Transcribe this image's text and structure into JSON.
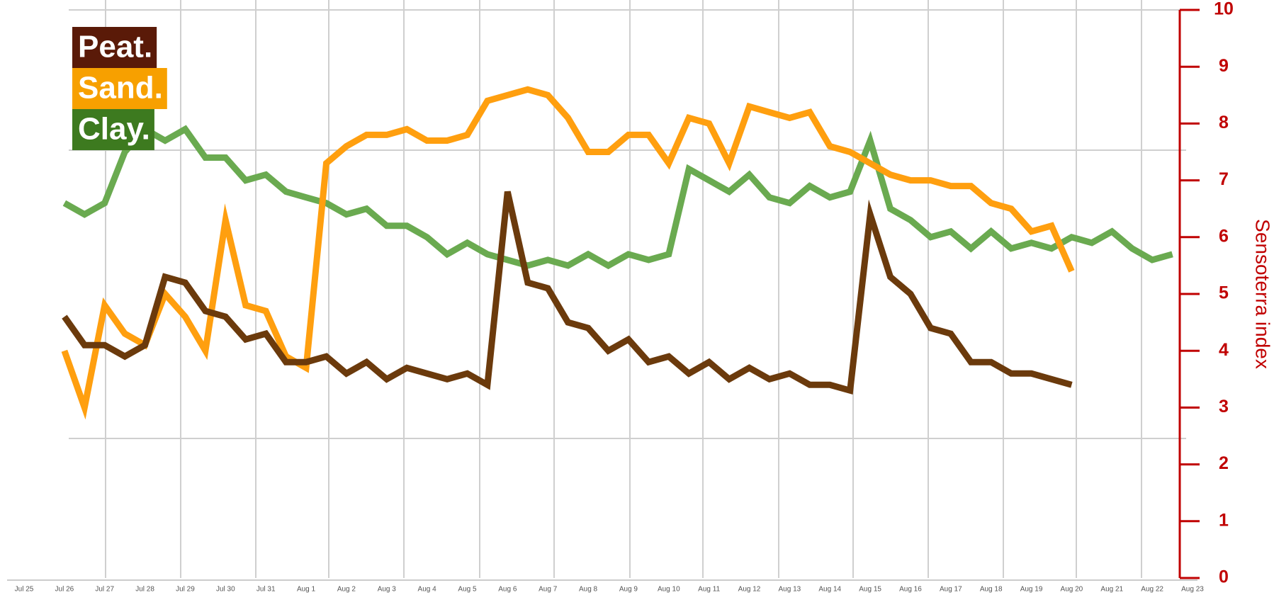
{
  "chart_data": {
    "type": "line",
    "y_axis_label": "Sensoterra index",
    "y_axis_side": "right",
    "axis_color": "#c00000",
    "legend": "top-left",
    "grid": true,
    "ylim": [
      0,
      10
    ],
    "yticks": [
      0,
      1,
      2,
      3,
      4,
      5,
      6,
      7,
      8,
      9,
      10
    ],
    "categories": [
      "Jul 25",
      null,
      "Jul 26",
      null,
      "Jul 27",
      null,
      "Jul 28",
      null,
      "Jul 29",
      null,
      "Jul 30",
      null,
      "Jul 31",
      null,
      "Aug 1",
      null,
      "Aug 2",
      null,
      "Aug 3",
      null,
      "Aug 4",
      null,
      "Aug 5",
      null,
      "Aug 6",
      null,
      "Aug 7",
      null,
      "Aug 8",
      null,
      "Aug 9",
      null,
      "Aug 10",
      null,
      "Aug 11",
      null,
      "Aug 12",
      null,
      "Aug 13",
      null,
      "Aug 14",
      null,
      "Aug 15",
      null,
      "Aug 16",
      null,
      "Aug 17",
      null,
      "Aug 18",
      null,
      "Aug 19",
      null,
      "Aug 20",
      null,
      "Aug 21",
      null,
      "Aug 22",
      null,
      "Aug 23"
    ],
    "series": [
      {
        "name": "Peat.",
        "color": "#6b3a0c",
        "legend_color": "#5a1a08",
        "values": [
          null,
          null,
          4.6,
          4.1,
          4.1,
          3.9,
          4.1,
          5.3,
          5.2,
          4.7,
          4.6,
          4.2,
          4.3,
          3.8,
          3.8,
          3.9,
          3.6,
          3.8,
          3.5,
          3.7,
          3.6,
          3.5,
          3.6,
          3.4,
          6.8,
          5.2,
          5.1,
          4.5,
          4.4,
          4.0,
          4.2,
          3.8,
          3.9,
          3.6,
          3.8,
          3.5,
          3.7,
          3.5,
          3.6,
          3.4,
          3.4,
          3.3,
          6.4,
          5.3,
          5.0,
          4.4,
          4.3,
          3.8,
          3.8,
          3.6,
          3.6,
          3.5,
          3.4,
          null,
          null,
          null,
          null,
          null,
          null
        ]
      },
      {
        "name": "Sand.",
        "color": "#ff9f0f",
        "legend_color": "#f7a000",
        "values": [
          null,
          null,
          4.0,
          3.0,
          4.8,
          4.3,
          4.1,
          5.0,
          4.6,
          4.0,
          6.3,
          4.8,
          4.7,
          3.9,
          3.7,
          7.3,
          7.6,
          7.8,
          7.8,
          7.9,
          7.7,
          7.7,
          7.8,
          8.4,
          8.5,
          8.6,
          8.5,
          8.1,
          7.5,
          7.5,
          7.8,
          7.8,
          7.3,
          8.1,
          8.0,
          7.3,
          8.3,
          8.2,
          8.1,
          8.2,
          7.6,
          7.5,
          7.3,
          7.1,
          7.0,
          7.0,
          6.9,
          6.9,
          6.6,
          6.5,
          6.1,
          6.2,
          5.4,
          null,
          null,
          null,
          null,
          null,
          null
        ]
      },
      {
        "name": "Clay.",
        "color": "#6aaa50",
        "legend_color": "#3d7a1f",
        "values": [
          null,
          null,
          6.6,
          6.4,
          6.6,
          7.5,
          7.9,
          7.7,
          7.9,
          7.4,
          7.4,
          7.0,
          7.1,
          6.8,
          6.7,
          6.6,
          6.4,
          6.5,
          6.2,
          6.2,
          6.0,
          5.7,
          5.9,
          5.7,
          5.6,
          5.5,
          5.6,
          5.5,
          5.7,
          5.5,
          5.7,
          5.6,
          5.7,
          7.2,
          7.0,
          6.8,
          7.1,
          6.7,
          6.6,
          6.9,
          6.7,
          6.8,
          7.7,
          6.5,
          6.3,
          6.0,
          6.1,
          5.8,
          6.1,
          5.8,
          5.9,
          5.8,
          6.0,
          5.9,
          6.1,
          5.8,
          5.6,
          5.7,
          null
        ]
      }
    ]
  }
}
